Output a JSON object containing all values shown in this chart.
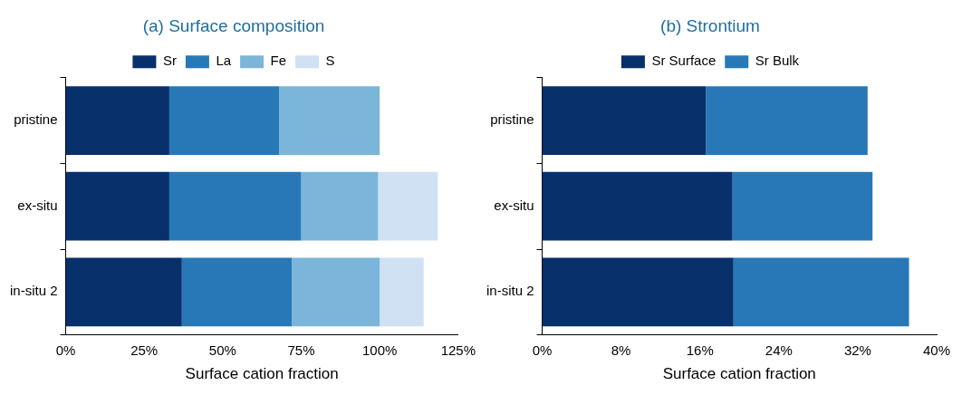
{
  "chart_data": [
    {
      "type": "bar",
      "title": "(a) Surface composition",
      "xlabel": "Surface cation fraction",
      "orientation": "horizontal",
      "stacked": true,
      "categories": [
        "pristine",
        "ex-situ",
        "in-situ 2"
      ],
      "series": [
        {
          "name": "Sr",
          "color": "#08306b",
          "values": [
            33,
            33,
            37
          ]
        },
        {
          "name": "La",
          "color": "#2878b8",
          "values": [
            35,
            42,
            35
          ]
        },
        {
          "name": "Fe",
          "color": "#7bb6da",
          "values": [
            32,
            24.5,
            28
          ]
        },
        {
          "name": "S",
          "color": "#cfe1f2",
          "values": [
            null,
            19,
            14
          ]
        }
      ],
      "xlim": [
        0,
        125
      ],
      "xticks": [
        {
          "value": 0,
          "label": "0%"
        },
        {
          "value": 25,
          "label": "25%"
        },
        {
          "value": 50,
          "label": "50%"
        },
        {
          "value": 75,
          "label": "75%"
        },
        {
          "value": 100,
          "label": "100%"
        },
        {
          "value": 125,
          "label": "125%"
        }
      ],
      "grid": false,
      "legend": "top"
    },
    {
      "type": "bar",
      "title": "(b) Strontium",
      "xlabel": "Surface cation fraction",
      "orientation": "horizontal",
      "stacked": true,
      "categories": [
        "pristine",
        "ex-situ",
        "in-situ 2"
      ],
      "series": [
        {
          "name": "Sr Surface",
          "color": "#08306b",
          "values": [
            16.6,
            19.3,
            19.4
          ]
        },
        {
          "name": "Sr Bulk",
          "color": "#2878b8",
          "values": [
            16.4,
            14.2,
            17.8
          ]
        }
      ],
      "xlim": [
        0,
        40
      ],
      "xticks": [
        {
          "value": 0,
          "label": "0%"
        },
        {
          "value": 8,
          "label": "8%"
        },
        {
          "value": 16,
          "label": "16%"
        },
        {
          "value": 24,
          "label": "24%"
        },
        {
          "value": 32,
          "label": "32%"
        },
        {
          "value": 40,
          "label": "40%"
        }
      ],
      "grid": false,
      "legend": "top"
    }
  ]
}
